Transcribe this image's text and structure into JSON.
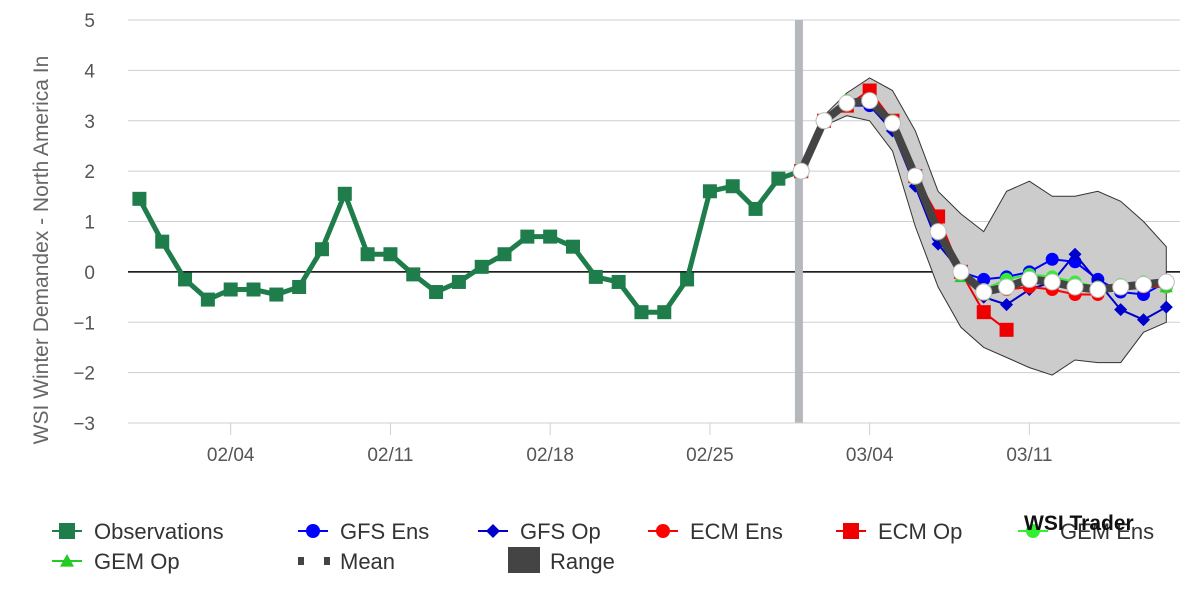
{
  "chart_data": {
    "type": "line",
    "title": "",
    "ylabel": "WSI Winter Demandex - North America In",
    "xlabel": "",
    "ylim": [
      -3,
      5
    ],
    "yticks": [
      -3,
      -2,
      -1,
      0,
      1,
      2,
      3,
      4,
      5
    ],
    "xticks": [
      {
        "label": "02/04",
        "day": 4
      },
      {
        "label": "02/11",
        "day": 11
      },
      {
        "label": "02/18",
        "day": 18
      },
      {
        "label": "02/25",
        "day": 25
      },
      {
        "label": "03/04",
        "day": 32
      },
      {
        "label": "03/11",
        "day": 39
      }
    ],
    "xlim": [
      -0.5,
      45.6
    ],
    "forecast_start_day": 28.9,
    "zero_line": true,
    "grid": true,
    "legend_position": "bottom",
    "brand": "WSI Trader",
    "colors": {
      "observations": "#1e7d4a",
      "gfs_ens": "#0000ff",
      "gfs_op": "#0000cc",
      "ecm_ens": "#ff0000",
      "ecm_op": "#ee0000",
      "gem_ens": "#33ee33",
      "gem_op": "#22cc22",
      "mean": "#444444",
      "range": "#cccccc",
      "grid": "#cfcfcf",
      "divider": "#b5b8bd"
    },
    "observations": {
      "name": "Observations",
      "x": [
        0,
        1,
        2,
        3,
        4,
        5,
        6,
        7,
        8,
        9,
        10,
        11,
        12,
        13,
        14,
        15,
        16,
        17,
        18,
        19,
        20,
        21,
        22,
        23,
        24,
        25,
        26,
        27,
        28,
        29
      ],
      "y": [
        1.45,
        0.6,
        -0.15,
        -0.55,
        -0.35,
        -0.35,
        -0.45,
        -0.3,
        0.45,
        1.55,
        0.35,
        0.35,
        -0.05,
        -0.4,
        -0.2,
        0.1,
        0.35,
        0.7,
        0.7,
        0.5,
        -0.1,
        -0.2,
        -0.8,
        -0.8,
        -0.15,
        1.6,
        1.7,
        1.25,
        1.85,
        2.0
      ]
    },
    "range": {
      "name": "Range",
      "x": [
        29,
        30,
        31,
        32,
        33,
        34,
        35,
        36,
        37,
        38,
        39,
        40,
        41,
        42,
        43,
        44,
        45
      ],
      "upper": [
        2.05,
        3.1,
        3.55,
        3.85,
        3.6,
        2.8,
        1.6,
        1.15,
        0.8,
        1.6,
        1.8,
        1.5,
        1.5,
        1.6,
        1.4,
        1.0,
        0.5
      ],
      "lower": [
        1.95,
        2.9,
        3.1,
        3.0,
        2.4,
        0.9,
        -0.3,
        -1.1,
        -1.5,
        -1.7,
        -1.9,
        -2.05,
        -1.75,
        -1.8,
        -1.8,
        -1.2,
        -1.0
      ]
    },
    "series": [
      {
        "name": "GFS Ens",
        "key": "gfs_ens",
        "marker": "circle",
        "x": [
          29,
          30,
          31,
          32,
          33,
          34,
          35,
          36,
          37,
          38,
          39,
          40,
          41,
          42,
          43,
          44,
          45
        ],
        "y": [
          2.0,
          3.0,
          3.35,
          3.3,
          2.9,
          1.85,
          0.7,
          0.0,
          -0.15,
          -0.1,
          0.0,
          0.25,
          0.2,
          -0.15,
          -0.4,
          -0.45,
          -0.2
        ]
      },
      {
        "name": "GFS Op",
        "key": "gfs_op",
        "marker": "diamond",
        "x": [
          29,
          30,
          31,
          32,
          33,
          34,
          35,
          36,
          37,
          38,
          39,
          40,
          41,
          42,
          43,
          44,
          45
        ],
        "y": [
          2.0,
          3.0,
          3.3,
          3.3,
          2.8,
          1.7,
          0.55,
          0.0,
          -0.5,
          -0.65,
          -0.35,
          -0.2,
          0.35,
          -0.2,
          -0.75,
          -0.95,
          -0.7
        ]
      },
      {
        "name": "ECM Ens",
        "key": "ecm_ens",
        "marker": "circle",
        "x": [
          29,
          30,
          31,
          32,
          33,
          34,
          35,
          36,
          37,
          38,
          39,
          40,
          41,
          42,
          43,
          44,
          45
        ],
        "y": [
          2.0,
          3.0,
          3.35,
          3.45,
          3.0,
          1.9,
          0.8,
          0.0,
          -0.45,
          -0.35,
          -0.3,
          -0.35,
          -0.45,
          -0.45,
          -0.3,
          -0.3,
          -0.3
        ]
      },
      {
        "name": "ECM Op",
        "key": "ecm_op",
        "marker": "square",
        "x": [
          29,
          30,
          31,
          32,
          33,
          34,
          35,
          36,
          37,
          38
        ],
        "y": [
          2.0,
          3.0,
          3.3,
          3.6,
          3.0,
          1.9,
          1.1,
          0.0,
          -0.8,
          -1.15
        ]
      },
      {
        "name": "GEM Ens",
        "key": "gem_ens",
        "marker": "circle",
        "x": [
          29,
          30,
          31,
          32,
          33,
          34,
          35,
          36,
          37,
          38,
          39,
          40,
          41,
          42,
          43,
          44,
          45
        ],
        "y": [
          2.05,
          3.0,
          3.4,
          3.4,
          3.0,
          1.85,
          0.75,
          -0.05,
          -0.35,
          -0.15,
          -0.05,
          -0.1,
          -0.2,
          -0.3,
          -0.25,
          -0.2,
          -0.3
        ]
      },
      {
        "name": "GEM Op",
        "key": "gem_op",
        "marker": "triangle",
        "x": [
          29,
          30,
          31,
          32,
          33,
          34,
          35,
          36,
          37,
          38,
          39,
          40,
          41,
          42,
          43,
          44,
          45
        ],
        "y": [
          2.05,
          3.0,
          3.4,
          3.45,
          3.0,
          1.9,
          0.8,
          -0.1,
          -0.45,
          -0.3,
          -0.1,
          -0.15,
          -0.3,
          -0.35,
          -0.3,
          -0.25,
          -0.3
        ]
      }
    ],
    "mean": {
      "name": "Mean",
      "x": [
        29,
        30,
        31,
        32,
        33,
        34,
        35,
        36,
        37,
        38,
        39,
        40,
        41,
        42,
        43,
        44,
        45
      ],
      "y": [
        2.0,
        3.0,
        3.35,
        3.4,
        2.95,
        1.9,
        0.8,
        0.0,
        -0.4,
        -0.3,
        -0.15,
        -0.2,
        -0.3,
        -0.35,
        -0.3,
        -0.25,
        -0.2
      ]
    },
    "legend": [
      {
        "label": "Observations",
        "key": "observations",
        "marker": "square",
        "row": 0,
        "col": 0
      },
      {
        "label": "GFS Ens",
        "key": "gfs_ens",
        "marker": "circle",
        "row": 0,
        "col": 1
      },
      {
        "label": "GFS Op",
        "key": "gfs_op",
        "marker": "diamond",
        "row": 0,
        "col": 2
      },
      {
        "label": "ECM Ens",
        "key": "ecm_ens",
        "marker": "circle",
        "row": 0,
        "col": 3
      },
      {
        "label": "ECM Op",
        "key": "ecm_op",
        "marker": "square",
        "row": 0,
        "col": 4
      },
      {
        "label": "GEM Ens",
        "key": "gem_ens",
        "marker": "circle",
        "row": 0,
        "col": 5
      },
      {
        "label": "GEM Op",
        "key": "gem_op",
        "marker": "triangle",
        "row": 1,
        "col": 0
      },
      {
        "label": "Mean",
        "key": "mean",
        "marker": "dots",
        "row": 1,
        "col": 1
      },
      {
        "label": "Range",
        "key": "range",
        "marker": "block",
        "row": 1,
        "col": 2
      }
    ]
  }
}
